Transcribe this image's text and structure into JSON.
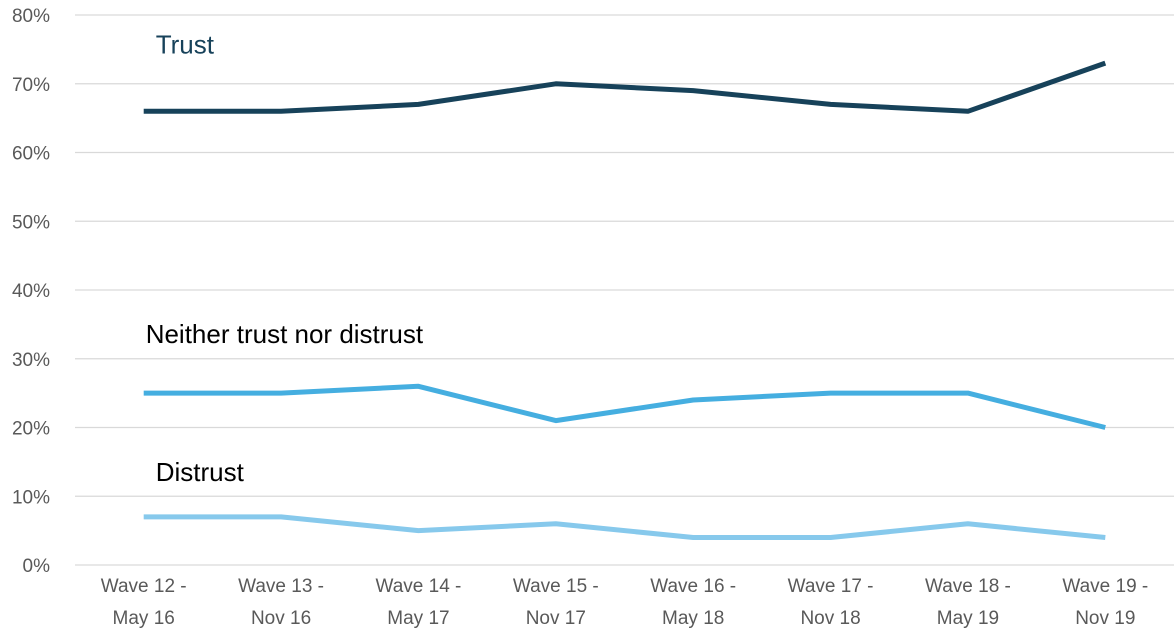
{
  "chart_data": {
    "type": "line",
    "categories": [
      [
        "Wave 12 -",
        "May 16"
      ],
      [
        "Wave 13 -",
        "Nov 16"
      ],
      [
        "Wave 14 -",
        "May 17"
      ],
      [
        "Wave 15 -",
        "Nov 17"
      ],
      [
        "Wave 16 -",
        "May 18"
      ],
      [
        "Wave 17 -",
        "Nov 18"
      ],
      [
        "Wave 18 -",
        "May 19"
      ],
      [
        "Wave 19 -",
        "Nov 19"
      ]
    ],
    "y_ticks": [
      "0%",
      "10%",
      "20%",
      "30%",
      "40%",
      "50%",
      "60%",
      "70%",
      "80%"
    ],
    "ylim": [
      0,
      80
    ],
    "grid": true,
    "legend": "none (direct labels)",
    "series": [
      {
        "name": "Trust",
        "color": "#17425a",
        "label_color": "#17425a",
        "values": [
          66,
          66,
          67,
          70,
          69,
          67,
          66,
          73
        ]
      },
      {
        "name": "Neither trust nor distrust",
        "color": "#45aee0",
        "label_color": "#000000",
        "values": [
          25,
          25,
          26,
          21,
          24,
          25,
          25,
          20
        ]
      },
      {
        "name": "Distrust",
        "color": "#87c9ec",
        "label_color": "#000000",
        "values": [
          7,
          7,
          5,
          6,
          4,
          4,
          6,
          4
        ]
      }
    ]
  }
}
